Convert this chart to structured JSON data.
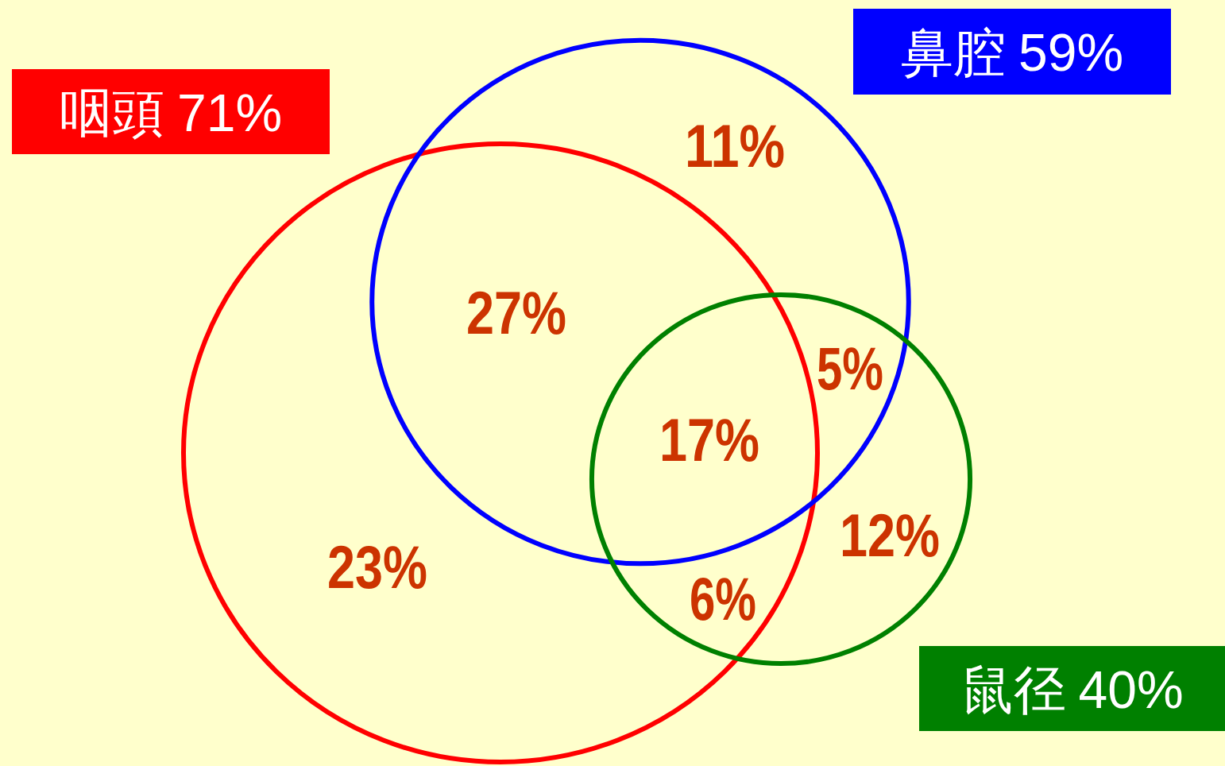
{
  "chart_data": {
    "type": "other",
    "categories": [
      "咽頭",
      "鼻腔",
      "鼠径"
    ],
    "values": [
      71,
      59,
      40
    ],
    "value_labels": [
      "71%",
      "59%",
      "40%"
    ],
    "colors": [
      "#ff0000",
      "#0000ff",
      "#008000"
    ],
    "annotations": [
      "23%",
      "27%",
      "11%",
      "17%",
      "5%",
      "12%",
      "6%"
    ]
  }
}
